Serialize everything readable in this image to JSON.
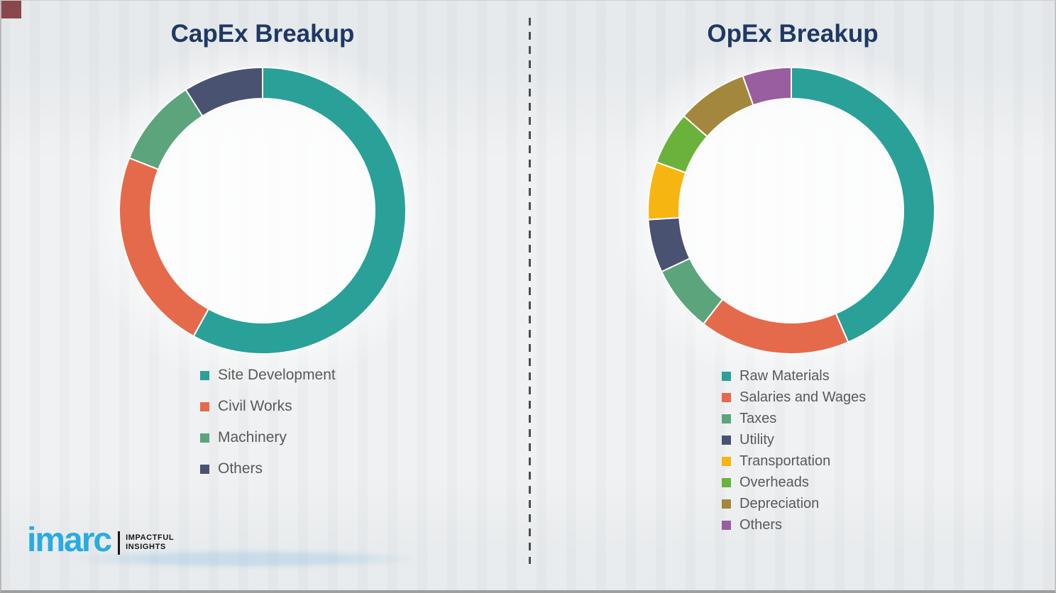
{
  "page": {
    "background_color": "#eef0f1",
    "divider_color": "#4d4d4d",
    "border_color": "#9f9f9f",
    "legend_text_color": "#595959",
    "title_color": "#1f3864"
  },
  "logo": {
    "text": "imarc",
    "tagline_line1": "IMPACTFUL",
    "tagline_line2": "INSIGHTS",
    "text_color": "#29abe2",
    "bar_color": "#161616",
    "tagline_color": "#161616"
  },
  "chart_data": [
    {
      "type": "pie",
      "variant": "donut",
      "title": "CapEx Breakup",
      "start_angle_deg": 0,
      "direction": "clockwise",
      "units": "percent (estimated from arc angles; no numeric labels shown)",
      "legend_position": "below-left",
      "segments": [
        {
          "label": "Site Development",
          "value": 58,
          "color": "#2aa198"
        },
        {
          "label": "Civil Works",
          "value": 23,
          "color": "#e56a4b"
        },
        {
          "label": "Machinery",
          "value": 10,
          "color": "#5ca47c"
        },
        {
          "label": "Others",
          "value": 9,
          "color": "#4a5271"
        }
      ]
    },
    {
      "type": "pie",
      "variant": "donut",
      "title": "OpEx Breakup",
      "start_angle_deg": 0,
      "direction": "clockwise",
      "units": "percent (estimated from arc angles; no numeric labels shown)",
      "legend_position": "below-left",
      "segments": [
        {
          "label": "Raw Materials",
          "value": 43.5,
          "color": "#2aa198"
        },
        {
          "label": "Salaries and Wages",
          "value": 17,
          "color": "#e56a4b"
        },
        {
          "label": "Taxes",
          "value": 7.5,
          "color": "#5ca47c"
        },
        {
          "label": "Utility",
          "value": 6,
          "color": "#4a5271"
        },
        {
          "label": "Transportation",
          "value": 6.5,
          "color": "#f6b511"
        },
        {
          "label": "Overheads",
          "value": 6,
          "color": "#6bb23c"
        },
        {
          "label": "Depreciation",
          "value": 8,
          "color": "#a3873c"
        },
        {
          "label": "Others",
          "value": 5.5,
          "color": "#995e9f"
        }
      ]
    }
  ]
}
